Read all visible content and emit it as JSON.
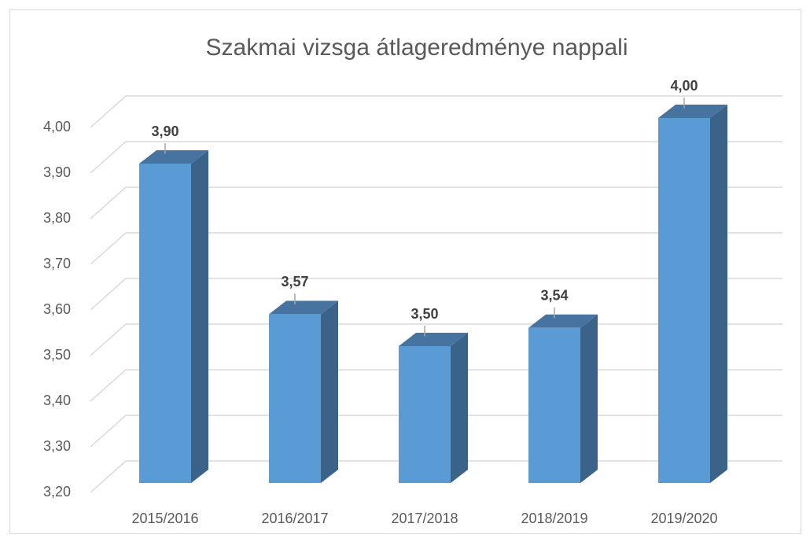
{
  "chart_data": {
    "type": "bar3d",
    "title": "Szakmai vizsga átlageredménye nappali",
    "categories": [
      "2015/2016",
      "2016/2017",
      "2017/2018",
      "2018/2019",
      "2019/2020"
    ],
    "values": [
      3.9,
      3.57,
      3.5,
      3.54,
      4.0
    ],
    "value_labels": [
      "3,90",
      "3,57",
      "3,50",
      "3,54",
      "4,00"
    ],
    "color": "#5b9bd5",
    "ylim": [
      3.2,
      4.0
    ],
    "yticks": [
      {
        "value": 3.2,
        "label": "3,20"
      },
      {
        "value": 3.3,
        "label": "3,30"
      },
      {
        "value": 3.4,
        "label": "3,40"
      },
      {
        "value": 3.5,
        "label": "3,50"
      },
      {
        "value": 3.6,
        "label": "3,60"
      },
      {
        "value": 3.7,
        "label": "3,70"
      },
      {
        "value": 3.8,
        "label": "3,80"
      },
      {
        "value": 3.9,
        "label": "3,90"
      },
      {
        "value": 4.0,
        "label": "4,00"
      }
    ],
    "grid": true
  }
}
